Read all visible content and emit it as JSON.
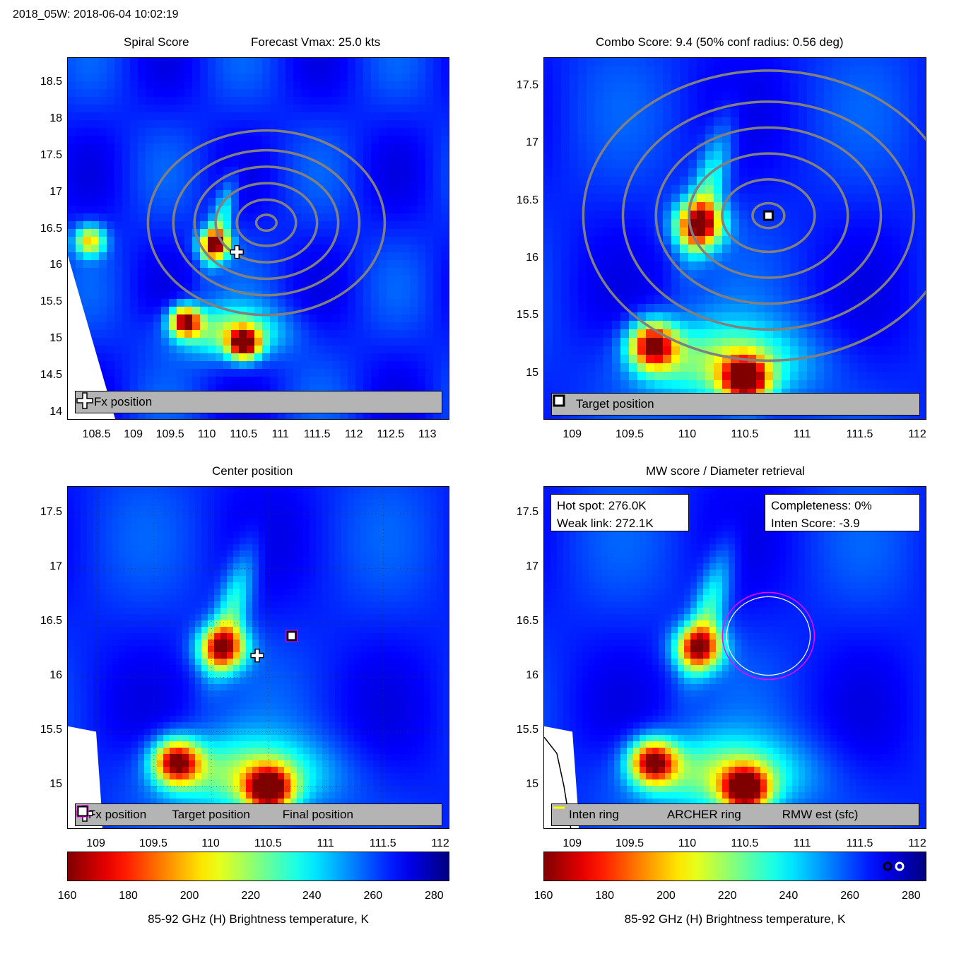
{
  "header": {
    "text": "2018_05W: 2018-06-04 10:02:19"
  },
  "panels": {
    "spiral": {
      "title_left": "Spiral Score",
      "title_right": "Forecast Vmax: 25.0 kts",
      "yticks": [
        "18.5",
        "18",
        "17.5",
        "17",
        "16.5",
        "16",
        "15.5",
        "15",
        "14.5",
        "14"
      ],
      "xticks": [
        "108.5",
        "109",
        "109.5",
        "110",
        "110.5",
        "111",
        "111.5",
        "112",
        "112.5",
        "113"
      ],
      "legend": {
        "fx_label": "Fx position"
      }
    },
    "combo": {
      "title": "Combo Score: 9.4  (50% conf radius: 0.56 deg)",
      "yticks": [
        "17.5",
        "17",
        "16.5",
        "16",
        "15.5",
        "15"
      ],
      "xticks": [
        "109",
        "109.5",
        "110",
        "110.5",
        "111",
        "111.5",
        "112"
      ],
      "legend": {
        "target_label": "Target position"
      }
    },
    "center": {
      "title": "Center position",
      "yticks": [
        "17.5",
        "17",
        "16.5",
        "16",
        "15.5",
        "15"
      ],
      "xticks": [
        "109",
        "109.5",
        "110",
        "110.5",
        "111",
        "111.5",
        "112"
      ],
      "legend": {
        "fx_label": "Fx position",
        "target_label": "Target position",
        "final_label": "Final position"
      }
    },
    "mw": {
      "title": "MW score / Diameter retrieval",
      "yticks": [
        "17.5",
        "17",
        "16.5",
        "16",
        "15.5",
        "15"
      ],
      "xticks": [
        "109",
        "109.5",
        "110",
        "110.5",
        "111",
        "111.5",
        "112"
      ],
      "info_left": {
        "line1": "Hot spot: 276.0K",
        "line2": "Weak link: 272.1K"
      },
      "info_right": {
        "line1": "Completeness: 0%",
        "line2": "Inten Score: -3.9"
      },
      "legend": {
        "inten_label": "Inten ring",
        "archer_label": "ARCHER ring",
        "rmw_label": "RMW est (sfc)"
      }
    }
  },
  "colorbars": {
    "ticks": [
      "160",
      "180",
      "200",
      "220",
      "240",
      "260",
      "280"
    ],
    "label": "85-92 GHz (H) Brightness temperature, K"
  },
  "colors": {
    "legend_bg": "#b4b4b4",
    "contour": "#808080",
    "archer_ring": "#ff00ff",
    "rmw": "#ffff00",
    "inten_ring": "#404040"
  },
  "chart_data": [
    {
      "type": "heatmap",
      "title": "Spiral Score",
      "subtitle": "Forecast Vmax: 25.0 kts",
      "xlim": [
        108.1,
        113.3
      ],
      "ylim": [
        13.9,
        18.85
      ],
      "hot_spots": [
        {
          "lon": 109.7,
          "lat": 15.25,
          "tb": 168
        },
        {
          "lon": 110.5,
          "lat": 14.95,
          "tb": 165
        },
        {
          "lon": 110.1,
          "lat": 16.3,
          "tb": 170
        },
        {
          "lon": 108.4,
          "lat": 16.35,
          "tb": 200
        }
      ],
      "fx_position": {
        "lon": 110.4,
        "lat": 16.2
      }
    },
    {
      "type": "heatmap",
      "title": "Combo Score: 9.4  (50% conf radius: 0.56 deg)",
      "xlim": [
        108.75,
        112.08
      ],
      "ylim": [
        14.6,
        17.75
      ],
      "hot_spots": [
        {
          "lon": 109.7,
          "lat": 15.25,
          "tb": 168
        },
        {
          "lon": 110.5,
          "lat": 14.95,
          "tb": 162
        },
        {
          "lon": 110.1,
          "lat": 16.3,
          "tb": 168
        }
      ],
      "target_position": {
        "lon": 110.7,
        "lat": 16.38
      }
    },
    {
      "type": "heatmap",
      "title": "Center position",
      "xlim": [
        108.75,
        112.08
      ],
      "ylim": [
        14.6,
        17.75
      ],
      "hot_spots": [
        {
          "lon": 109.7,
          "lat": 15.22,
          "tb": 170
        },
        {
          "lon": 110.5,
          "lat": 14.97,
          "tb": 163
        },
        {
          "lon": 110.1,
          "lat": 16.27,
          "tb": 175
        }
      ],
      "fx_position": {
        "lon": 110.4,
        "lat": 16.2
      },
      "target_position": {
        "lon": 110.7,
        "lat": 16.38
      },
      "final_position": {
        "lon": 110.7,
        "lat": 16.38
      }
    },
    {
      "type": "heatmap",
      "title": "MW score / Diameter retrieval",
      "xlim": [
        108.75,
        112.08
      ],
      "ylim": [
        14.6,
        17.75
      ],
      "hot_spots": [
        {
          "lon": 109.7,
          "lat": 15.22,
          "tb": 170
        },
        {
          "lon": 110.5,
          "lat": 14.97,
          "tb": 163
        },
        {
          "lon": 110.1,
          "lat": 16.27,
          "tb": 175
        }
      ],
      "archer_ring": {
        "lon": 110.7,
        "lat": 16.38,
        "radius_deg": 0.4
      },
      "colorbar_range": [
        160,
        285
      ]
    }
  ]
}
